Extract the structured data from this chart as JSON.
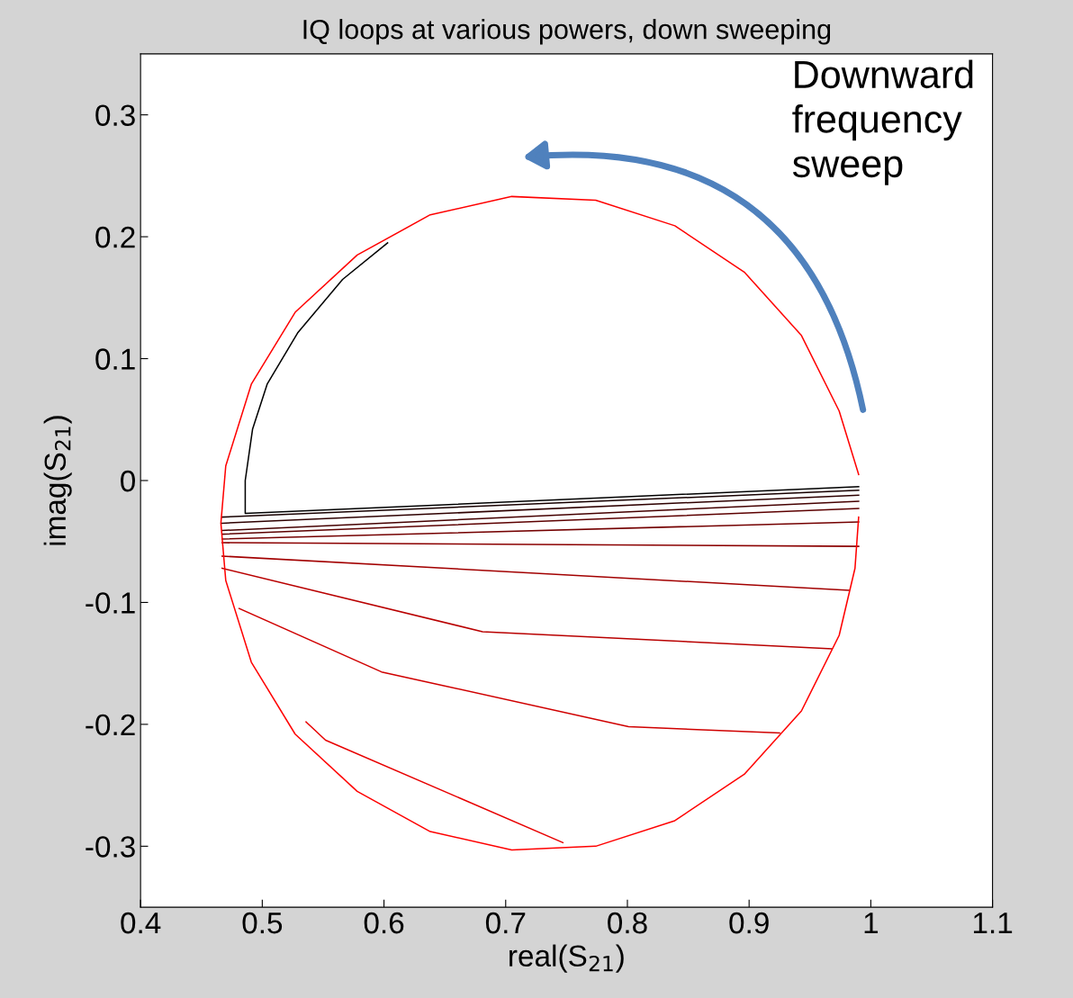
{
  "chart_data": {
    "type": "line",
    "title": "IQ loops at various powers, down sweeping",
    "xlabel": "real(S$_{21}$)",
    "ylabel": "imag(S$_{21}$)",
    "annotations": [
      "Downward frequency sweep"
    ],
    "xlim": [
      0.4,
      1.1
    ],
    "ylim": [
      -0.35,
      0.35
    ],
    "xticks": [
      0.4,
      0.5,
      0.6,
      0.7,
      0.8,
      0.9,
      1,
      1.1
    ],
    "yticks": [
      -0.3,
      -0.2,
      -0.1,
      0,
      0.1,
      0.2,
      0.3
    ],
    "grid": false,
    "marker": "none",
    "line_style": "solid",
    "series": [
      {
        "color": "#000000",
        "x": [
          0.603,
          0.566,
          0.529,
          0.504,
          0.492,
          0.486,
          0.486,
          0.99
        ],
        "values": [
          0.195,
          0.165,
          0.121,
          0.079,
          0.042,
          0.0,
          -0.027,
          -0.005
        ]
      },
      {
        "color": "#170000",
        "x": [
          0.467,
          0.99
        ],
        "values": [
          -0.03,
          -0.008
        ]
      },
      {
        "color": "#2e0000",
        "x": [
          0.467,
          0.99
        ],
        "values": [
          -0.035,
          -0.012
        ]
      },
      {
        "color": "#450000",
        "x": [
          0.467,
          0.99
        ],
        "values": [
          -0.041,
          -0.017
        ]
      },
      {
        "color": "#5c0000",
        "x": [
          0.467,
          0.99
        ],
        "values": [
          -0.044,
          -0.023
        ]
      },
      {
        "color": "#740000",
        "x": [
          0.467,
          0.99
        ],
        "values": [
          -0.048,
          -0.034
        ]
      },
      {
        "color": "#8b0000",
        "x": [
          0.467,
          0.99
        ],
        "values": [
          -0.051,
          -0.054
        ]
      },
      {
        "color": "#a20000",
        "x": [
          0.467,
          0.982
        ],
        "values": [
          -0.062,
          -0.09
        ]
      },
      {
        "color": "#b90000",
        "x": [
          0.467,
          0.681,
          0.968
        ],
        "values": [
          -0.072,
          -0.124,
          -0.138
        ]
      },
      {
        "color": "#d00000",
        "x": [
          0.481,
          0.598,
          0.801,
          0.925
        ],
        "values": [
          -0.105,
          -0.157,
          -0.202,
          -0.207
        ]
      },
      {
        "color": "#e80000",
        "x": [
          0.536,
          0.552,
          0.747
        ],
        "values": [
          -0.198,
          -0.213,
          -0.297
        ]
      },
      {
        "color": "#ff0000",
        "x": [
          0.99,
          0.974,
          0.943,
          0.896,
          0.839,
          0.774,
          0.705,
          0.638,
          0.578,
          0.527,
          0.491,
          0.47,
          0.466,
          0.47,
          0.491,
          0.527,
          0.578,
          0.638,
          0.705,
          0.774,
          0.839,
          0.896,
          0.943,
          0.974,
          0.987,
          0.99
        ],
        "values": [
          0.005,
          0.057,
          0.119,
          0.171,
          0.209,
          0.23,
          0.233,
          0.218,
          0.185,
          0.138,
          0.079,
          0.012,
          -0.035,
          -0.082,
          -0.149,
          -0.208,
          -0.255,
          -0.288,
          -0.303,
          -0.3,
          -0.279,
          -0.241,
          -0.189,
          -0.127,
          -0.072,
          -0.03
        ]
      }
    ]
  }
}
